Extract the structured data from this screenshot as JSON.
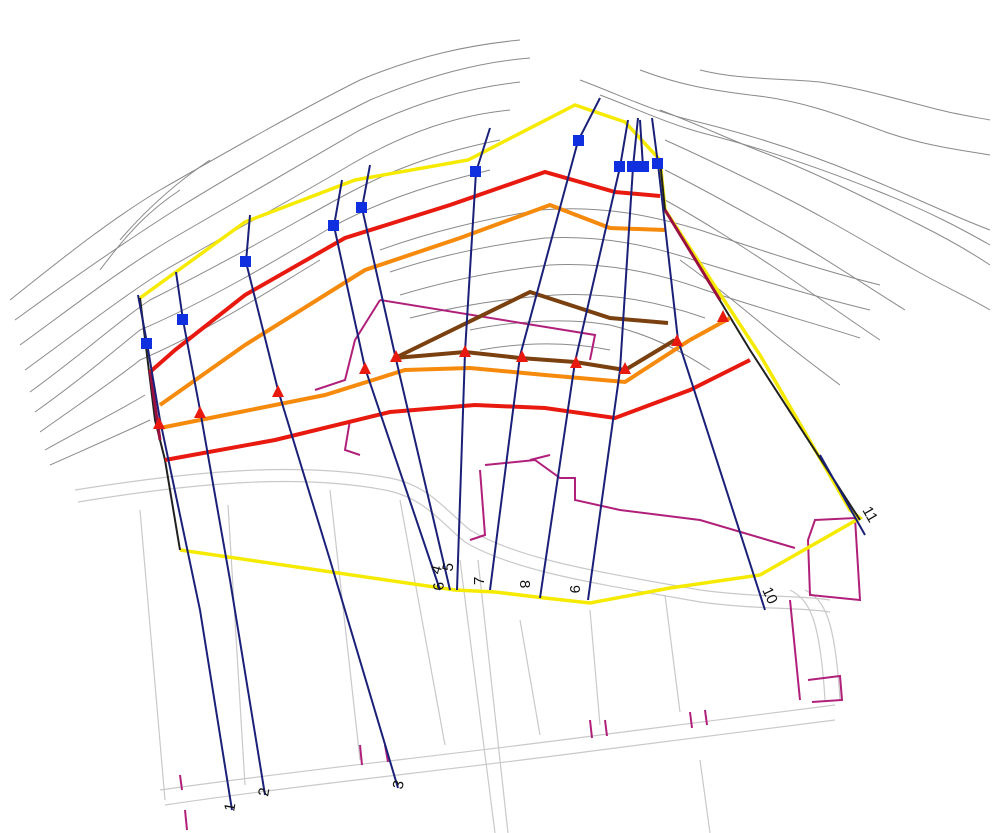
{
  "colors": {
    "background": "#ffffff",
    "contour": "#8a8a8a",
    "road": "#c9c9c9",
    "yellow_boundary": "#f5ea00",
    "red_line": "#e81a10",
    "orange_line": "#f58a0c",
    "brown_line": "#7a4010",
    "magenta_parcel": "#b0207a",
    "section_line": "#1a2078",
    "marker_square": "#1030e0",
    "marker_triangle": "#e81a10"
  },
  "section_labels": [
    "1",
    "2",
    "3",
    "4",
    "5",
    "6",
    "7",
    "8",
    "9",
    "10",
    "11"
  ],
  "marker_icons": {
    "square": "square-marker-icon",
    "triangle": "triangle-marker-icon"
  }
}
